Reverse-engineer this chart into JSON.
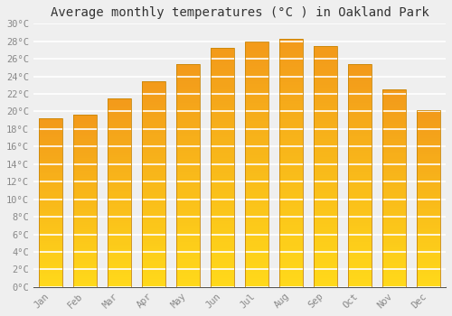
{
  "title": "Average monthly temperatures (°C ) in Oakland Park",
  "months": [
    "Jan",
    "Feb",
    "Mar",
    "Apr",
    "May",
    "Jun",
    "Jul",
    "Aug",
    "Sep",
    "Oct",
    "Nov",
    "Dec"
  ],
  "values": [
    19.2,
    19.6,
    21.5,
    23.4,
    25.4,
    27.3,
    28.0,
    28.3,
    27.5,
    25.4,
    22.5,
    20.2
  ],
  "ylim": [
    0,
    30
  ],
  "ytick_step": 2,
  "bar_color_top": "#F5A623",
  "bar_color_bottom": "#FFD000",
  "bar_edge_color": "#C8860A",
  "background_color": "#EFEFEF",
  "grid_color": "#FFFFFF",
  "title_fontsize": 10,
  "tick_fontsize": 7.5,
  "tick_color": "#888888",
  "font_family": "monospace",
  "bar_width": 0.7
}
